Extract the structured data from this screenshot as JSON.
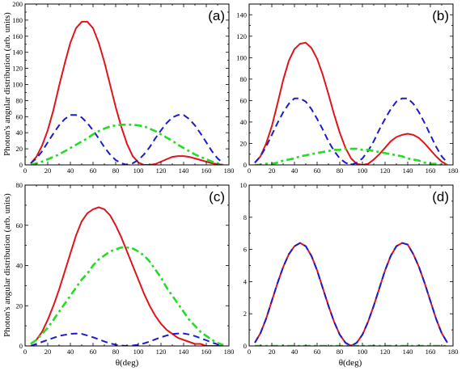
{
  "figure": {
    "ylabel": "Photon's angular distribution (arb. units)",
    "xlabel": "θ(deg)"
  },
  "colors": {
    "red": "#e0151b",
    "blue": "#1c1ccc",
    "green": "#22dd22"
  },
  "chart_data": [
    {
      "type": "line",
      "panel": "(a)",
      "xlim": [
        0,
        180
      ],
      "ylim": [
        0,
        200
      ],
      "xticks": [
        0,
        20,
        40,
        60,
        80,
        100,
        120,
        140,
        160,
        180
      ],
      "yticks": [
        0,
        20,
        40,
        60,
        80,
        100,
        120,
        140,
        160,
        180,
        200
      ],
      "show_xtick_labels": true,
      "show_ytick_labels": true,
      "series": [
        {
          "style": "solid",
          "color": "red",
          "x": [
            5,
            10,
            15,
            20,
            25,
            30,
            35,
            40,
            45,
            50,
            55,
            60,
            65,
            70,
            75,
            80,
            85,
            90,
            95,
            100,
            105,
            110,
            115,
            120,
            125,
            130,
            135,
            140,
            145,
            150,
            155,
            160,
            165,
            170,
            175
          ],
          "y": [
            2,
            10,
            24,
            43,
            68,
            98,
            126,
            152,
            170,
            178,
            178,
            170,
            152,
            128,
            100,
            72,
            47,
            26,
            11,
            3,
            0,
            0,
            1,
            4,
            7,
            10,
            11,
            11,
            10,
            8,
            6,
            4,
            2,
            1,
            0
          ]
        },
        {
          "style": "dashed",
          "color": "blue",
          "x": [
            5,
            10,
            15,
            20,
            25,
            30,
            35,
            40,
            45,
            50,
            55,
            60,
            65,
            70,
            75,
            80,
            85,
            90,
            95,
            100,
            105,
            110,
            115,
            120,
            125,
            130,
            135,
            140,
            145,
            150,
            155,
            160,
            165,
            170,
            175
          ],
          "y": [
            2,
            8,
            17,
            28,
            39,
            49,
            57,
            62,
            62,
            59,
            52,
            43,
            33,
            22,
            13,
            6,
            2,
            0,
            2,
            6,
            13,
            22,
            33,
            43,
            52,
            59,
            62,
            62,
            57,
            49,
            39,
            28,
            17,
            8,
            2
          ]
        },
        {
          "style": "dashdot",
          "color": "green",
          "x": [
            5,
            10,
            15,
            20,
            25,
            30,
            35,
            40,
            45,
            50,
            55,
            60,
            65,
            70,
            75,
            80,
            85,
            90,
            95,
            100,
            105,
            110,
            115,
            120,
            125,
            130,
            135,
            140,
            145,
            150,
            155,
            160,
            165,
            170,
            175
          ],
          "y": [
            0,
            2,
            4,
            7,
            10,
            13,
            17,
            21,
            25,
            29,
            33,
            38,
            42,
            45,
            48,
            49,
            50,
            50,
            50,
            49,
            48,
            45,
            42,
            38,
            34,
            30,
            25,
            21,
            17,
            13,
            10,
            7,
            4,
            2,
            0
          ]
        }
      ]
    },
    {
      "type": "line",
      "panel": "(b)",
      "xlim": [
        0,
        180
      ],
      "ylim": [
        0,
        150
      ],
      "xticks": [
        0,
        20,
        40,
        60,
        80,
        100,
        120,
        140,
        160,
        180
      ],
      "yticks": [
        0,
        20,
        40,
        60,
        80,
        100,
        120,
        140
      ],
      "show_xtick_labels": true,
      "show_ytick_labels": true,
      "series": [
        {
          "style": "solid",
          "color": "red",
          "x": [
            5,
            10,
            15,
            20,
            25,
            30,
            35,
            40,
            45,
            50,
            55,
            60,
            65,
            70,
            75,
            80,
            85,
            90,
            95,
            100,
            105,
            110,
            115,
            120,
            125,
            130,
            135,
            140,
            145,
            150,
            155,
            160,
            165,
            170,
            175
          ],
          "y": [
            2,
            8,
            20,
            36,
            57,
            79,
            97,
            108,
            113,
            114,
            109,
            99,
            84,
            66,
            47,
            30,
            16,
            6,
            1,
            0,
            1,
            5,
            10,
            16,
            22,
            26,
            28,
            29,
            28,
            25,
            20,
            14,
            8,
            3,
            0
          ]
        },
        {
          "style": "dashed",
          "color": "blue",
          "x": [
            5,
            10,
            15,
            20,
            25,
            30,
            35,
            40,
            45,
            50,
            55,
            60,
            65,
            70,
            75,
            80,
            85,
            90,
            95,
            100,
            105,
            110,
            115,
            120,
            125,
            130,
            135,
            140,
            145,
            150,
            155,
            160,
            165,
            170,
            175
          ],
          "y": [
            2,
            8,
            17,
            28,
            39,
            49,
            57,
            62,
            62,
            59,
            52,
            43,
            33,
            22,
            13,
            6,
            2,
            0,
            2,
            6,
            13,
            22,
            33,
            43,
            52,
            59,
            62,
            62,
            57,
            49,
            39,
            28,
            17,
            8,
            2
          ]
        },
        {
          "style": "dashdot",
          "color": "green",
          "x": [
            5,
            10,
            15,
            20,
            25,
            30,
            35,
            40,
            45,
            50,
            55,
            60,
            65,
            70,
            75,
            80,
            85,
            90,
            95,
            100,
            105,
            110,
            115,
            120,
            125,
            130,
            135,
            140,
            145,
            150,
            155,
            160,
            165,
            170,
            175
          ],
          "y": [
            0,
            0,
            1,
            1,
            2,
            4,
            5,
            6,
            8,
            9,
            10,
            11,
            12,
            13,
            14,
            14,
            15,
            15,
            15,
            14,
            14,
            13,
            12,
            11,
            10,
            9,
            8,
            6,
            5,
            4,
            2,
            1,
            1,
            0,
            0
          ]
        }
      ]
    },
    {
      "type": "line",
      "panel": "(c)",
      "xlim": [
        0,
        180
      ],
      "ylim": [
        0,
        80
      ],
      "xticks": [
        0,
        20,
        40,
        60,
        80,
        100,
        120,
        140,
        160,
        180
      ],
      "yticks": [
        0,
        20,
        40,
        60,
        80
      ],
      "show_xtick_labels": true,
      "show_ytick_labels": true,
      "series": [
        {
          "style": "solid",
          "color": "red",
          "x": [
            5,
            10,
            15,
            20,
            25,
            30,
            35,
            40,
            45,
            50,
            55,
            60,
            65,
            70,
            75,
            80,
            85,
            90,
            95,
            100,
            105,
            110,
            115,
            120,
            125,
            130,
            135,
            140,
            145,
            150,
            155,
            160,
            165,
            170,
            175
          ],
          "y": [
            1,
            3,
            7,
            13,
            20,
            28,
            37,
            46,
            55,
            62,
            66,
            68,
            69,
            68,
            65,
            60,
            54,
            47,
            40,
            33,
            26,
            20,
            15,
            11,
            8,
            6,
            4,
            3,
            2,
            1,
            1,
            0,
            0,
            0,
            0
          ]
        },
        {
          "style": "dashed",
          "color": "blue",
          "x": [
            5,
            10,
            15,
            20,
            25,
            30,
            35,
            40,
            45,
            50,
            55,
            60,
            65,
            70,
            75,
            80,
            85,
            90,
            95,
            100,
            105,
            110,
            115,
            120,
            125,
            130,
            135,
            140,
            145,
            150,
            155,
            160,
            165,
            170,
            175
          ],
          "y": [
            0,
            1,
            2,
            3,
            4,
            5,
            5.5,
            6,
            6.2,
            6,
            5.2,
            4.3,
            3.3,
            2.2,
            1.3,
            0.6,
            0.2,
            0,
            0.2,
            0.6,
            1.3,
            2.2,
            3.3,
            4.3,
            5.2,
            5.9,
            6.2,
            6.2,
            5.7,
            4.9,
            3.9,
            2.8,
            1.7,
            0.8,
            0.2
          ]
        },
        {
          "style": "dashdot",
          "color": "green",
          "x": [
            5,
            10,
            15,
            20,
            25,
            30,
            35,
            40,
            45,
            50,
            55,
            60,
            65,
            70,
            75,
            80,
            85,
            90,
            95,
            100,
            105,
            110,
            115,
            120,
            125,
            130,
            135,
            140,
            145,
            150,
            155,
            160,
            165,
            170,
            175
          ],
          "y": [
            1,
            3,
            6,
            9,
            13,
            17,
            21,
            25,
            29,
            33,
            36,
            40,
            43,
            45,
            47,
            48,
            49,
            49,
            48.5,
            47,
            45,
            42,
            38,
            34,
            29,
            25,
            21,
            17,
            13,
            10,
            7,
            5,
            3,
            1.5,
            0.5
          ]
        }
      ]
    },
    {
      "type": "line",
      "panel": "(d)",
      "xlim": [
        0,
        180
      ],
      "ylim": [
        0,
        10
      ],
      "xticks": [
        0,
        20,
        40,
        60,
        80,
        100,
        120,
        140,
        160,
        180
      ],
      "yticks": [
        0,
        2,
        4,
        6,
        8,
        10
      ],
      "show_xtick_labels": true,
      "show_ytick_labels": true,
      "series": [
        {
          "style": "solid",
          "color": "red",
          "x": [
            5,
            10,
            15,
            20,
            25,
            30,
            35,
            40,
            45,
            50,
            55,
            60,
            65,
            70,
            75,
            80,
            85,
            90,
            95,
            100,
            105,
            110,
            115,
            120,
            125,
            130,
            135,
            140,
            145,
            150,
            155,
            160,
            165,
            170,
            175
          ],
          "y": [
            0.2,
            0.8,
            1.7,
            2.8,
            3.9,
            4.9,
            5.7,
            6.2,
            6.4,
            6.2,
            5.6,
            4.7,
            3.6,
            2.5,
            1.5,
            0.7,
            0.2,
            0,
            0.2,
            0.7,
            1.5,
            2.5,
            3.6,
            4.7,
            5.6,
            6.2,
            6.4,
            6.3,
            5.7,
            4.9,
            3.9,
            2.8,
            1.7,
            0.8,
            0.2
          ]
        },
        {
          "style": "dashed",
          "color": "blue",
          "x": [
            5,
            10,
            15,
            20,
            25,
            30,
            35,
            40,
            45,
            50,
            55,
            60,
            65,
            70,
            75,
            80,
            85,
            90,
            95,
            100,
            105,
            110,
            115,
            120,
            125,
            130,
            135,
            140,
            145,
            150,
            155,
            160,
            165,
            170,
            175
          ],
          "y": [
            0.2,
            0.8,
            1.7,
            2.8,
            3.9,
            4.9,
            5.7,
            6.2,
            6.4,
            6.2,
            5.6,
            4.7,
            3.6,
            2.5,
            1.5,
            0.7,
            0.2,
            0,
            0.2,
            0.7,
            1.5,
            2.5,
            3.6,
            4.7,
            5.6,
            6.2,
            6.4,
            6.3,
            5.7,
            4.9,
            3.9,
            2.8,
            1.7,
            0.8,
            0.2
          ]
        },
        {
          "style": "dashdot",
          "color": "green",
          "x": [
            5,
            175
          ],
          "y": [
            0,
            0
          ]
        }
      ]
    }
  ]
}
